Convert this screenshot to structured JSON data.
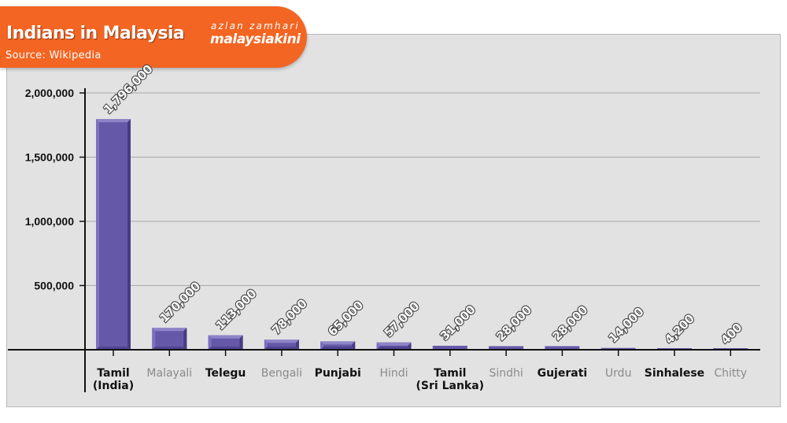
{
  "header": {
    "title": "Indians in Malaysia",
    "subtitle": "Source: Wikipedia",
    "credit_name": "azlan zamhari",
    "credit_org": "malaysiakini"
  },
  "colors": {
    "accent": "#f26522",
    "panel": "#e2e2e2",
    "bar_front": "#6558a8",
    "bar_top": "#8e84c8",
    "bar_side": "#463c80",
    "label_dark": "#111111",
    "label_grey": "#8a8a8a"
  },
  "chart_data": {
    "type": "bar",
    "title": "Indians in Malaysia",
    "subtitle": "Source: Wikipedia",
    "xlabel": "",
    "ylabel": "",
    "ylim": [
      0,
      2000000
    ],
    "yticks": [
      500000,
      1000000,
      1500000,
      2000000
    ],
    "ytick_labels": [
      "500,000",
      "1,000,000",
      "1,500,000",
      "2,000,000"
    ],
    "grid": true,
    "categories": [
      [
        "Tamil",
        "(India)"
      ],
      [
        "Malayali"
      ],
      [
        "Telegu"
      ],
      [
        "Bengali"
      ],
      [
        "Punjabi"
      ],
      [
        "Hindi"
      ],
      [
        "Tamil",
        "(Sri Lanka)"
      ],
      [
        "Sindhi"
      ],
      [
        "Gujerati"
      ],
      [
        "Urdu"
      ],
      [
        "Sinhalese"
      ],
      [
        "Chitty"
      ]
    ],
    "category_label_style": [
      "dark",
      "grey",
      "dark",
      "grey",
      "dark",
      "grey",
      "dark",
      "grey",
      "dark",
      "grey",
      "dark",
      "grey"
    ],
    "values": [
      1796000,
      170000,
      113000,
      78000,
      65000,
      57000,
      31000,
      28000,
      28000,
      14000,
      4200,
      400
    ],
    "data_labels": [
      "1,796,000",
      "170,000",
      "113,000",
      "78,000",
      "65,000",
      "57,000",
      "31,000",
      "28,000",
      "28,000",
      "14,000",
      "4,200",
      "400"
    ]
  }
}
